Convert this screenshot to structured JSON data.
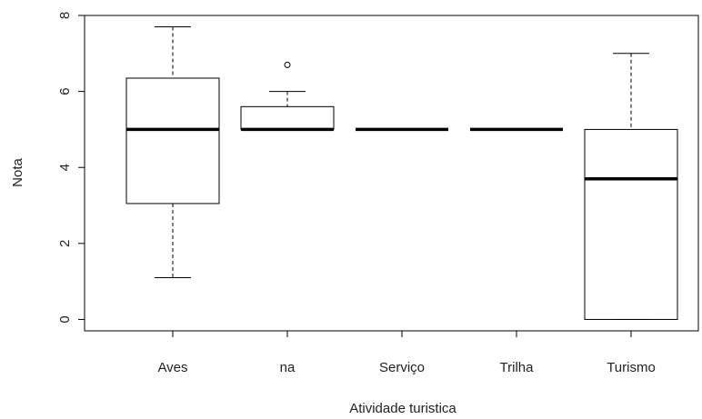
{
  "chart_data": {
    "type": "boxplot",
    "xlabel": "Atividade turistica",
    "ylabel": "Nota",
    "categories": [
      "Aves",
      "na",
      "Serviço",
      "Trilha",
      "Turismo"
    ],
    "min": [
      1.1,
      5,
      5,
      5,
      0
    ],
    "q1": [
      3.05,
      5,
      5,
      5,
      0
    ],
    "median": [
      5,
      5,
      5,
      5,
      3.7
    ],
    "q3": [
      6.35,
      5.6,
      5,
      5,
      5
    ],
    "max": [
      7.7,
      6,
      5,
      5,
      7
    ],
    "outliers": [
      [],
      [
        6.7
      ],
      [],
      [],
      []
    ],
    "color": "#000000",
    "ylim": [
      -0.3,
      8
    ],
    "yticks": [
      0,
      2,
      4,
      6,
      8
    ]
  }
}
